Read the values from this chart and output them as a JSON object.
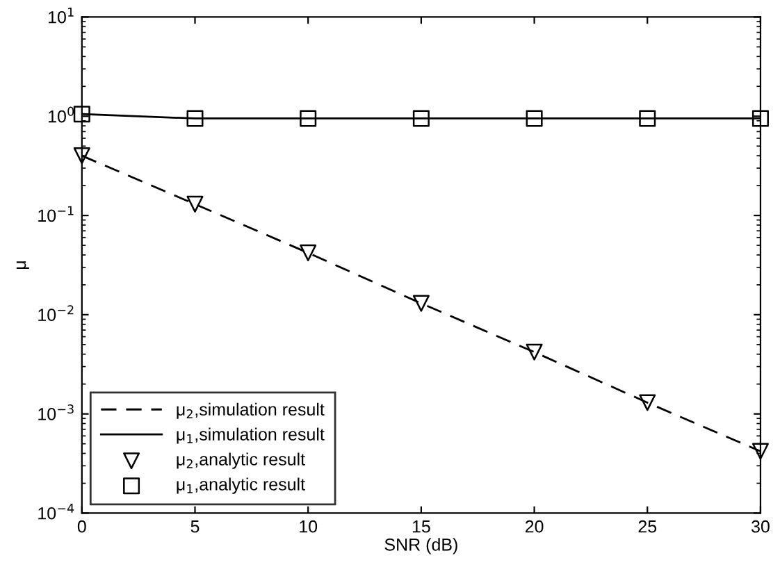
{
  "chart_data": {
    "type": "line",
    "xlabel": "SNR (dB)",
    "ylabel": "μ",
    "x": [
      0,
      5,
      10,
      15,
      20,
      25,
      30
    ],
    "series": [
      {
        "name": "μ$_{2}$,simulation result",
        "line_style": "dashed",
        "marker": "none",
        "color": "#000000",
        "values": [
          0.4,
          0.13,
          0.042,
          0.013,
          0.0042,
          0.0013,
          0.00042
        ]
      },
      {
        "name": "μ$_{1}$,simulation result",
        "line_style": "solid",
        "marker": "none",
        "color": "#000000",
        "values": [
          1.05,
          0.95,
          0.95,
          0.95,
          0.95,
          0.95,
          0.95
        ]
      },
      {
        "name": "μ$_{2}$,analytic result",
        "type": "scatter",
        "marker": "triangle",
        "color": "#000000",
        "values": [
          0.4,
          0.13,
          0.042,
          0.013,
          0.0042,
          0.0013,
          0.00042
        ]
      },
      {
        "name": "μ$_{1}$,analytic result",
        "type": "scatter",
        "marker": "square",
        "color": "#000000",
        "values": [
          1.05,
          0.95,
          0.95,
          0.95,
          0.95,
          0.95,
          0.95
        ]
      }
    ],
    "log": "y",
    "xlim": [
      0,
      30
    ],
    "ylim": [
      0.0001,
      10
    ],
    "xticks": [
      0,
      5,
      10,
      15,
      20,
      25,
      30
    ],
    "yticks": [
      {
        "value": 0.0001,
        "label": "10$^{−4}$"
      },
      {
        "value": 0.001,
        "label": "10$^{−3}$"
      },
      {
        "value": 0.01,
        "label": "10$^{−2}$"
      },
      {
        "value": 0.1,
        "label": "10$^{−1}$"
      },
      {
        "value": 1,
        "label": "10$^{0}$"
      },
      {
        "value": 10,
        "label": "10$^{1}$"
      }
    ],
    "grid": false,
    "legend": "bottom left"
  }
}
